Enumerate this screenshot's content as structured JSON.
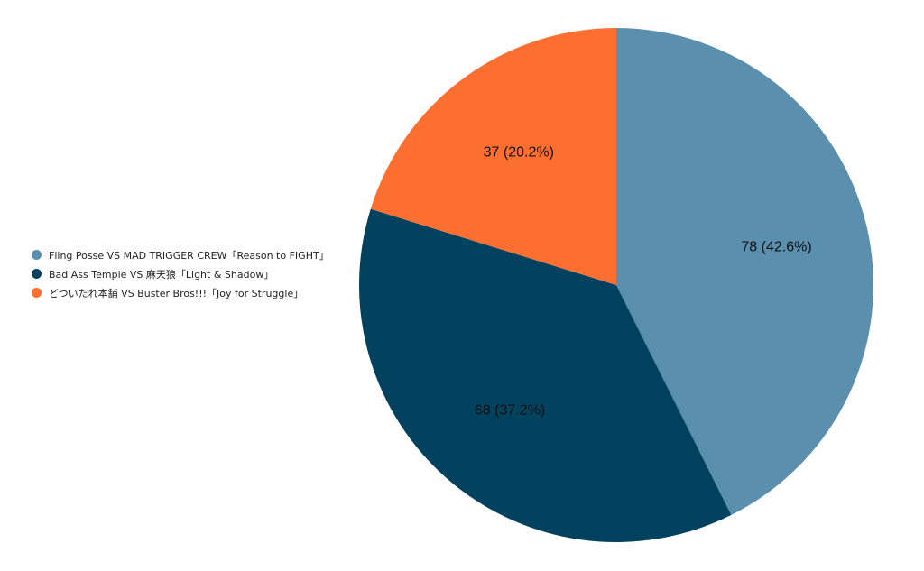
{
  "chart_data": {
    "type": "pie",
    "title": "",
    "legend_position": "left",
    "slices": [
      {
        "name": "Fling Posse VS MAD TRIGGER CREW「Reason to FIGHT」",
        "value": 78,
        "percent_label": "78 (42.6%)",
        "color": "#5a90ae"
      },
      {
        "name": "Bad Ass Temple VS 麻天狼「Light & Shadow」",
        "value": 68,
        "percent_label": "68 (37.2%)",
        "color": "#02425e"
      },
      {
        "name": "どついたれ本舗 VS Buster Bros!!!「Joy for Struggle」",
        "value": 37,
        "percent_label": "37 (20.2%)",
        "color": "#fd6f31"
      }
    ]
  }
}
